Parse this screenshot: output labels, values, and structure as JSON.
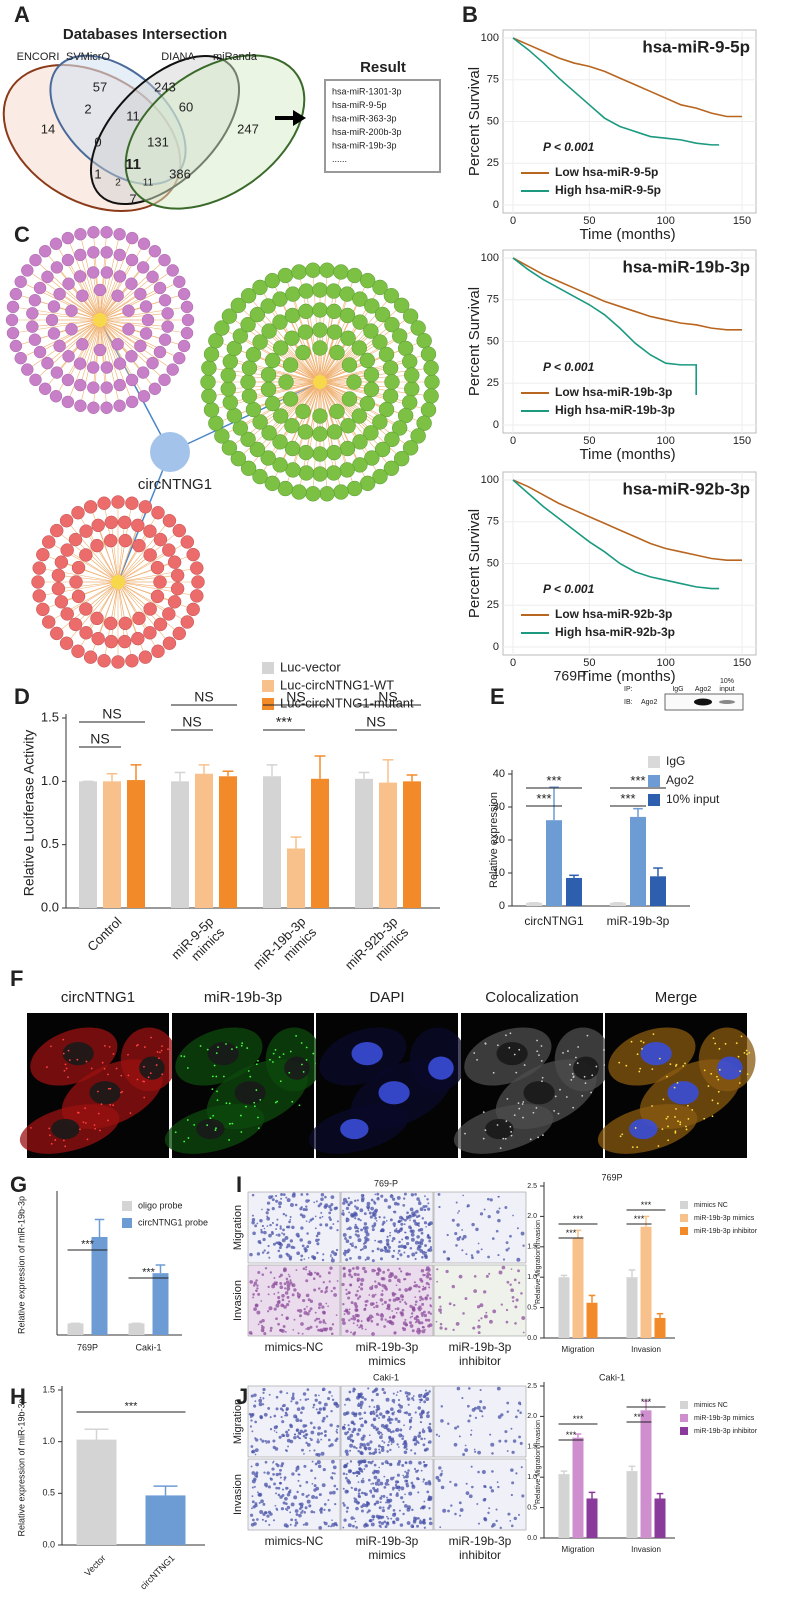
{
  "panel_labels": [
    "A",
    "B",
    "C",
    "D",
    "E",
    "F",
    "G",
    "H",
    "I",
    "J"
  ],
  "venn": {
    "title": "Databases Intersection",
    "sets": [
      "ENCORI",
      "SVMicrO",
      "DIANA",
      "miRanda"
    ],
    "regions": [
      57,
      243,
      2,
      11,
      60,
      14,
      247,
      0,
      131,
      11,
      386,
      1,
      2,
      11,
      7
    ]
  },
  "result": {
    "title": "Result",
    "items": [
      "hsa-miR-1301-3p",
      "hsa-miR-9-5p",
      "hsa-miR-363-3p",
      "hsa-miR-200b-3p",
      "hsa-miR-19b-3p",
      "......"
    ]
  },
  "network": {
    "hub_label": "circNTNG1"
  },
  "blot": {
    "ip": "IP:",
    "ib": "IB:",
    "target": "Ago2",
    "lanes": [
      [
        "IgG"
      ],
      [
        "Ago2"
      ],
      [
        "10%",
        "input"
      ]
    ]
  },
  "fish": {
    "columns": [
      "circNTNG1",
      "miR-19b-3p",
      "DAPI",
      "Colocalization",
      "Merge"
    ]
  },
  "transwell": [
    {
      "title": "769-P",
      "rows": [
        "Migration",
        "Invasion"
      ],
      "columns": [
        [
          "mimics-NC"
        ],
        [
          "miR-19b-3p",
          "mimics"
        ],
        [
          "miR-19b-3p",
          "inhibitor"
        ]
      ]
    },
    {
      "title": "Caki-1",
      "rows": [
        "Migration",
        "Invasion"
      ],
      "columns": [
        [
          "mimics-NC"
        ],
        [
          "miR-19b-3p",
          "mimics"
        ],
        [
          "miR-19b-3p",
          "inhibitor"
        ]
      ]
    }
  ],
  "chart_data": [
    {
      "type": "line",
      "title": "hsa-miR-9-5p",
      "xlabel": "Time (months)",
      "ylabel": "Percent Survival",
      "xlim": [
        0,
        150
      ],
      "ylim": [
        0,
        100
      ],
      "xticks": [
        0,
        50,
        100,
        150
      ],
      "yticks": [
        0,
        25,
        50,
        75,
        100
      ],
      "grid": true,
      "annotations": [
        "P < 0.001"
      ],
      "series": [
        {
          "name": "Low hsa-miR-9-5p",
          "color": "#b8651f",
          "x": [
            0,
            10,
            20,
            30,
            40,
            50,
            60,
            70,
            80,
            90,
            100,
            110,
            120,
            130,
            140,
            150
          ],
          "values": [
            100,
            96,
            92,
            88,
            85,
            83,
            80,
            76,
            72,
            68,
            64,
            60,
            58,
            55,
            53,
            53
          ]
        },
        {
          "name": "High hsa-miR-9-5p",
          "color": "#1b9a80",
          "x": [
            0,
            10,
            20,
            30,
            40,
            50,
            60,
            70,
            80,
            90,
            100,
            110,
            120,
            130,
            135
          ],
          "values": [
            100,
            93,
            85,
            76,
            68,
            60,
            52,
            47,
            44,
            41,
            40,
            39,
            37,
            36,
            36
          ]
        }
      ]
    },
    {
      "type": "line",
      "title": "hsa-miR-19b-3p",
      "xlabel": "Time (months)",
      "ylabel": "Percent Survival",
      "xlim": [
        0,
        150
      ],
      "ylim": [
        0,
        100
      ],
      "xticks": [
        0,
        50,
        100,
        150
      ],
      "yticks": [
        0,
        25,
        50,
        75,
        100
      ],
      "grid": true,
      "annotations": [
        "P < 0.001"
      ],
      "series": [
        {
          "name": "Low hsa-miR-19b-3p",
          "color": "#b8651f",
          "x": [
            0,
            10,
            20,
            30,
            40,
            50,
            60,
            70,
            80,
            90,
            100,
            110,
            120,
            130,
            140,
            150
          ],
          "values": [
            100,
            95,
            90,
            86,
            82,
            78,
            74,
            71,
            68,
            65,
            63,
            61,
            60,
            58,
            57,
            57
          ]
        },
        {
          "name": "High hsa-miR-19b-3p",
          "color": "#1b9a80",
          "x": [
            0,
            10,
            20,
            30,
            40,
            50,
            60,
            70,
            80,
            90,
            100,
            110,
            115,
            120,
            120
          ],
          "values": [
            100,
            93,
            87,
            82,
            77,
            72,
            66,
            58,
            49,
            42,
            37,
            36,
            36,
            36,
            18
          ]
        }
      ]
    },
    {
      "type": "line",
      "title": "hsa-miR-92b-3p",
      "xlabel": "Time (months)",
      "ylabel": "Percent Survival",
      "xlim": [
        0,
        150
      ],
      "ylim": [
        0,
        100
      ],
      "xticks": [
        0,
        50,
        100,
        150
      ],
      "yticks": [
        0,
        25,
        50,
        75,
        100
      ],
      "grid": true,
      "annotations": [
        "P < 0.001"
      ],
      "series": [
        {
          "name": "Low hsa-miR-92b-3p",
          "color": "#b8651f",
          "x": [
            0,
            10,
            20,
            30,
            40,
            50,
            60,
            70,
            80,
            90,
            100,
            110,
            120,
            130,
            140,
            150
          ],
          "values": [
            100,
            96,
            91,
            86,
            82,
            78,
            74,
            70,
            66,
            62,
            59,
            57,
            55,
            53,
            52,
            52
          ]
        },
        {
          "name": "High hsa-miR-92b-3p",
          "color": "#1b9a80",
          "x": [
            0,
            10,
            20,
            30,
            40,
            50,
            60,
            70,
            80,
            90,
            100,
            110,
            120,
            130,
            135
          ],
          "values": [
            100,
            92,
            84,
            77,
            70,
            63,
            57,
            50,
            45,
            42,
            40,
            38,
            36,
            35,
            35
          ]
        }
      ]
    },
    {
      "type": "bar",
      "ylabel": "Relative Luciferase Activity",
      "categories": [
        "Control",
        [
          "miR-9-5p",
          "mimics"
        ],
        [
          "miR-19b-3p",
          "mimics"
        ],
        [
          "miR-92b-3p",
          "mimics"
        ]
      ],
      "ylim": [
        0,
        1.5
      ],
      "yticks": [
        {
          "value": 0,
          "label": "0.0"
        },
        0.5,
        {
          "value": 1,
          "label": "1.0"
        },
        1.5
      ],
      "annotations": [
        "NS",
        "NS",
        "NS",
        "NS",
        "NS",
        "***",
        "NS",
        "NS"
      ],
      "series": [
        {
          "name": "Luc-vector",
          "color": "#d4d4d4",
          "values": [
            1.0,
            1.0,
            1.04,
            1.02
          ],
          "errors": [
            0,
            0.07,
            0.09,
            0.05
          ]
        },
        {
          "name": "Luc-circNTNG1-WT",
          "color": "#f8c08a",
          "values": [
            1.0,
            1.06,
            0.47,
            0.99
          ],
          "errors": [
            0.06,
            0.07,
            0.09,
            0.18
          ]
        },
        {
          "name": "Luc-circNTNG1-mutant",
          "color": "#f28a2a",
          "values": [
            1.01,
            1.04,
            1.02,
            1.0
          ],
          "errors": [
            0.12,
            0.04,
            0.18,
            0.05
          ]
        }
      ]
    },
    {
      "type": "bar",
      "title": "769P",
      "ylabel": "Relative expression",
      "categories": [
        "circNTNG1",
        "miR-19b-3p"
      ],
      "ylim": [
        0,
        40
      ],
      "yticks": [
        0,
        10,
        20,
        30,
        40
      ],
      "annotations": [
        "***",
        "***",
        "***",
        "***"
      ],
      "series": [
        {
          "name": "IgG",
          "color": "#d9d9d9",
          "values": [
            1,
            1
          ],
          "errors": [
            0,
            0
          ]
        },
        {
          "name": "Ago2",
          "color": "#6d9cd4",
          "values": [
            26,
            27
          ],
          "errors": [
            10,
            2.5
          ]
        },
        {
          "name": "10% input",
          "color": "#2d5fae",
          "values": [
            8.5,
            9
          ],
          "errors": [
            0.8,
            2.5
          ]
        }
      ]
    },
    {
      "type": "bar",
      "ylabel": "Relative expression of miR-19b-3p",
      "categories": [
        "769P",
        "Caki-1"
      ],
      "ylim": [
        0,
        12
      ],
      "annotations": [
        "***",
        "***"
      ],
      "series": [
        {
          "name": "oligo probe",
          "color": "#d4d4d4",
          "values": [
            1,
            1
          ],
          "errors": [
            0,
            0
          ]
        },
        {
          "name": "circNTNG1 probe",
          "color": "#6d9cd4",
          "values": [
            8.4,
            5.3
          ],
          "errors": [
            1.5,
            0.7
          ]
        }
      ]
    },
    {
      "type": "bar",
      "ylabel": "Relative expression of miR-19b-3p",
      "categories": [
        "Vector",
        "circNTNG1"
      ],
      "ylim": [
        0,
        1.5
      ],
      "yticks": [
        {
          "value": 0,
          "label": "0.0"
        },
        0.5,
        {
          "value": 1,
          "label": "1.0"
        },
        1.5
      ],
      "annotations": [
        "***"
      ],
      "colors": [
        "#d4d4d4",
        "#6d9cd4"
      ],
      "values": [
        1.02,
        0.48
      ],
      "errors": [
        0.1,
        0.09
      ]
    },
    {
      "type": "bar",
      "title": "769P",
      "ylabel": "Relative Migration/Invasion",
      "categories": [
        "Migration",
        "Invasion"
      ],
      "ylim": [
        0,
        2.5
      ],
      "yticks": [
        {
          "value": 0,
          "label": "0.0"
        },
        0.5,
        {
          "value": 1,
          "label": "1.0"
        },
        1.5,
        {
          "value": 2,
          "label": "2.0"
        },
        2.5
      ],
      "annotations": [
        "***",
        "***",
        "***",
        "***"
      ],
      "series": [
        {
          "name": "mimics NC",
          "color": "#d4d4d4",
          "values": [
            1.0,
            1.0
          ],
          "errors": [
            0.03,
            0.12
          ]
        },
        {
          "name": "miR-19b-3p mimics",
          "color": "#f8c08a",
          "values": [
            1.65,
            1.83
          ],
          "errors": [
            0.12,
            0.17
          ]
        },
        {
          "name": "miR-19b-3p inhibitor",
          "color": "#f28a2a",
          "values": [
            0.58,
            0.33
          ],
          "errors": [
            0.12,
            0.07
          ]
        }
      ]
    },
    {
      "type": "bar",
      "title": "Caki-1",
      "ylabel": "Relative Migration/Invasion",
      "categories": [
        "Migration",
        "Invasion"
      ],
      "ylim": [
        0,
        2.5
      ],
      "yticks": [
        {
          "value": 0,
          "label": "0.0"
        },
        0.5,
        {
          "value": 1,
          "label": "1.0"
        },
        1.5,
        {
          "value": 2,
          "label": "2.0"
        },
        2.5
      ],
      "annotations": [
        "***",
        "***",
        "***",
        "***"
      ],
      "series": [
        {
          "name": "mimics NC",
          "color": "#d4d4d4",
          "values": [
            1.05,
            1.1
          ],
          "errors": [
            0.05,
            0.08
          ]
        },
        {
          "name": "miR-19b-3p mimics",
          "color": "#cf8fcf",
          "values": [
            1.65,
            2.1
          ],
          "errors": [
            0.06,
            0.15
          ]
        },
        {
          "name": "miR-19b-3p inhibitor",
          "color": "#8a3a9a",
          "values": [
            0.65,
            0.65
          ],
          "errors": [
            0.1,
            0.08
          ]
        }
      ]
    }
  ]
}
